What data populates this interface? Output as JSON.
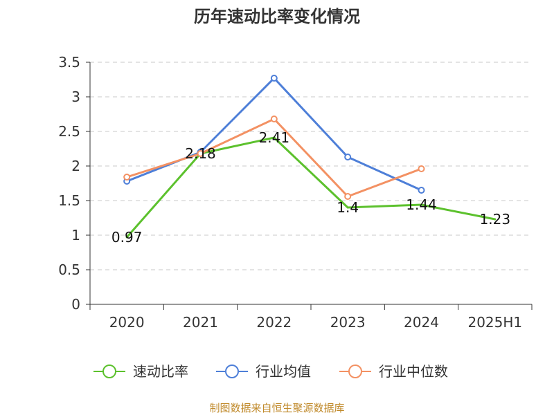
{
  "chart_data": {
    "type": "line",
    "title": "历年速动比率变化情况",
    "categories": [
      "2020",
      "2021",
      "2022",
      "2023",
      "2024",
      "2025H1"
    ],
    "ylim": [
      0,
      3.5
    ],
    "yticks": [
      "0",
      "0.5",
      "1",
      "1.5",
      "2",
      "2.5",
      "3",
      "3.5"
    ],
    "grid": true,
    "legend_position": "bottom",
    "series": [
      {
        "name": "速动比率",
        "color": "#5cc12d",
        "values": [
          0.97,
          2.18,
          2.41,
          1.4,
          1.44,
          1.23
        ],
        "data_labels": [
          "0.97",
          "2.18",
          "2.41",
          "1.4",
          "1.44",
          "1.23"
        ]
      },
      {
        "name": "行业均值",
        "color": "#4e7fd8",
        "values": [
          1.78,
          2.2,
          3.27,
          2.13,
          1.65,
          null
        ]
      },
      {
        "name": "行业中位数",
        "color": "#f39163",
        "values": [
          1.84,
          2.18,
          2.68,
          1.56,
          1.96,
          null
        ]
      }
    ]
  },
  "footer": {
    "source": "制图数据来自恒生聚源数据库"
  }
}
